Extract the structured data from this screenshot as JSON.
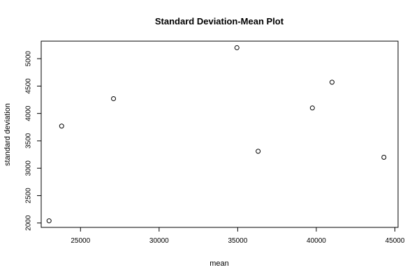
{
  "chart_data": {
    "type": "scatter",
    "title": "Standard Deviation-Mean Plot",
    "xlabel": "mean",
    "ylabel": "standard deviation",
    "xlim": [
      22500,
      45200
    ],
    "ylim": [
      1920,
      5320
    ],
    "xticks": [
      25000,
      30000,
      35000,
      40000,
      45000
    ],
    "yticks": [
      2000,
      2500,
      3000,
      3500,
      4000,
      4500,
      5000
    ],
    "grid": false,
    "points": [
      {
        "x": 23000,
        "y": 2040
      },
      {
        "x": 23800,
        "y": 3770
      },
      {
        "x": 27100,
        "y": 4270
      },
      {
        "x": 34950,
        "y": 5200
      },
      {
        "x": 36300,
        "y": 3310
      },
      {
        "x": 39750,
        "y": 4100
      },
      {
        "x": 41000,
        "y": 4570
      },
      {
        "x": 44300,
        "y": 3200
      }
    ]
  }
}
